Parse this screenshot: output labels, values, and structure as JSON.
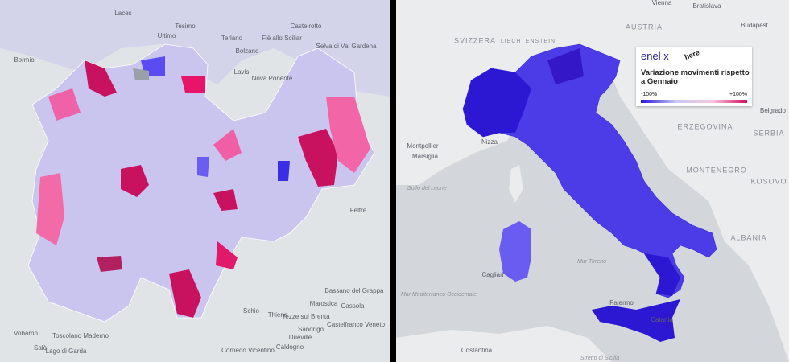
{
  "left_map": {
    "labels": [
      "Laces",
      "Tesimo",
      "Ultimo",
      "Terlano",
      "Castelrotto",
      "Fiè allo Sciliar",
      "Selva di Val Gardena",
      "Bolzano",
      "Lavis",
      "Nova Ponente",
      "Bormio",
      "Feltre",
      "Bassano del Grappa",
      "Marostica",
      "Schio",
      "Thiene",
      "Tezze sul Brenta",
      "Cassola",
      "Sandrigo",
      "Castelfranco Veneto",
      "Dueville",
      "Caldogno",
      "Cornedo Vicentino",
      "Toscolano Maderno",
      "Vobarno",
      "Salò",
      "Lago di Garda"
    ]
  },
  "right_map": {
    "labels": [
      "Vienna",
      "Bratislava",
      "Budapest",
      "AUSTRIA",
      "SVIZZERA",
      "LIECHTENSTEIN",
      "ERZEGOVINA",
      "SERBIA",
      "Belgrado",
      "MONTENEGRO",
      "KOSOVO",
      "ALBANIA",
      "Montpellier",
      "Marsiglia",
      "Nizza",
      "Golfo del Leone",
      "Mar Tirreno",
      "Mar Mediterraneo Occidentale",
      "Palermo",
      "Catania",
      "Cagliari",
      "Costantina",
      "Stretto di Sicilia"
    ],
    "legend": {
      "brand": "enel x",
      "partner": "here",
      "title": "Variazione movimenti rispetto a Gennaio",
      "min_label": "-100%",
      "max_label": "+100%"
    }
  }
}
